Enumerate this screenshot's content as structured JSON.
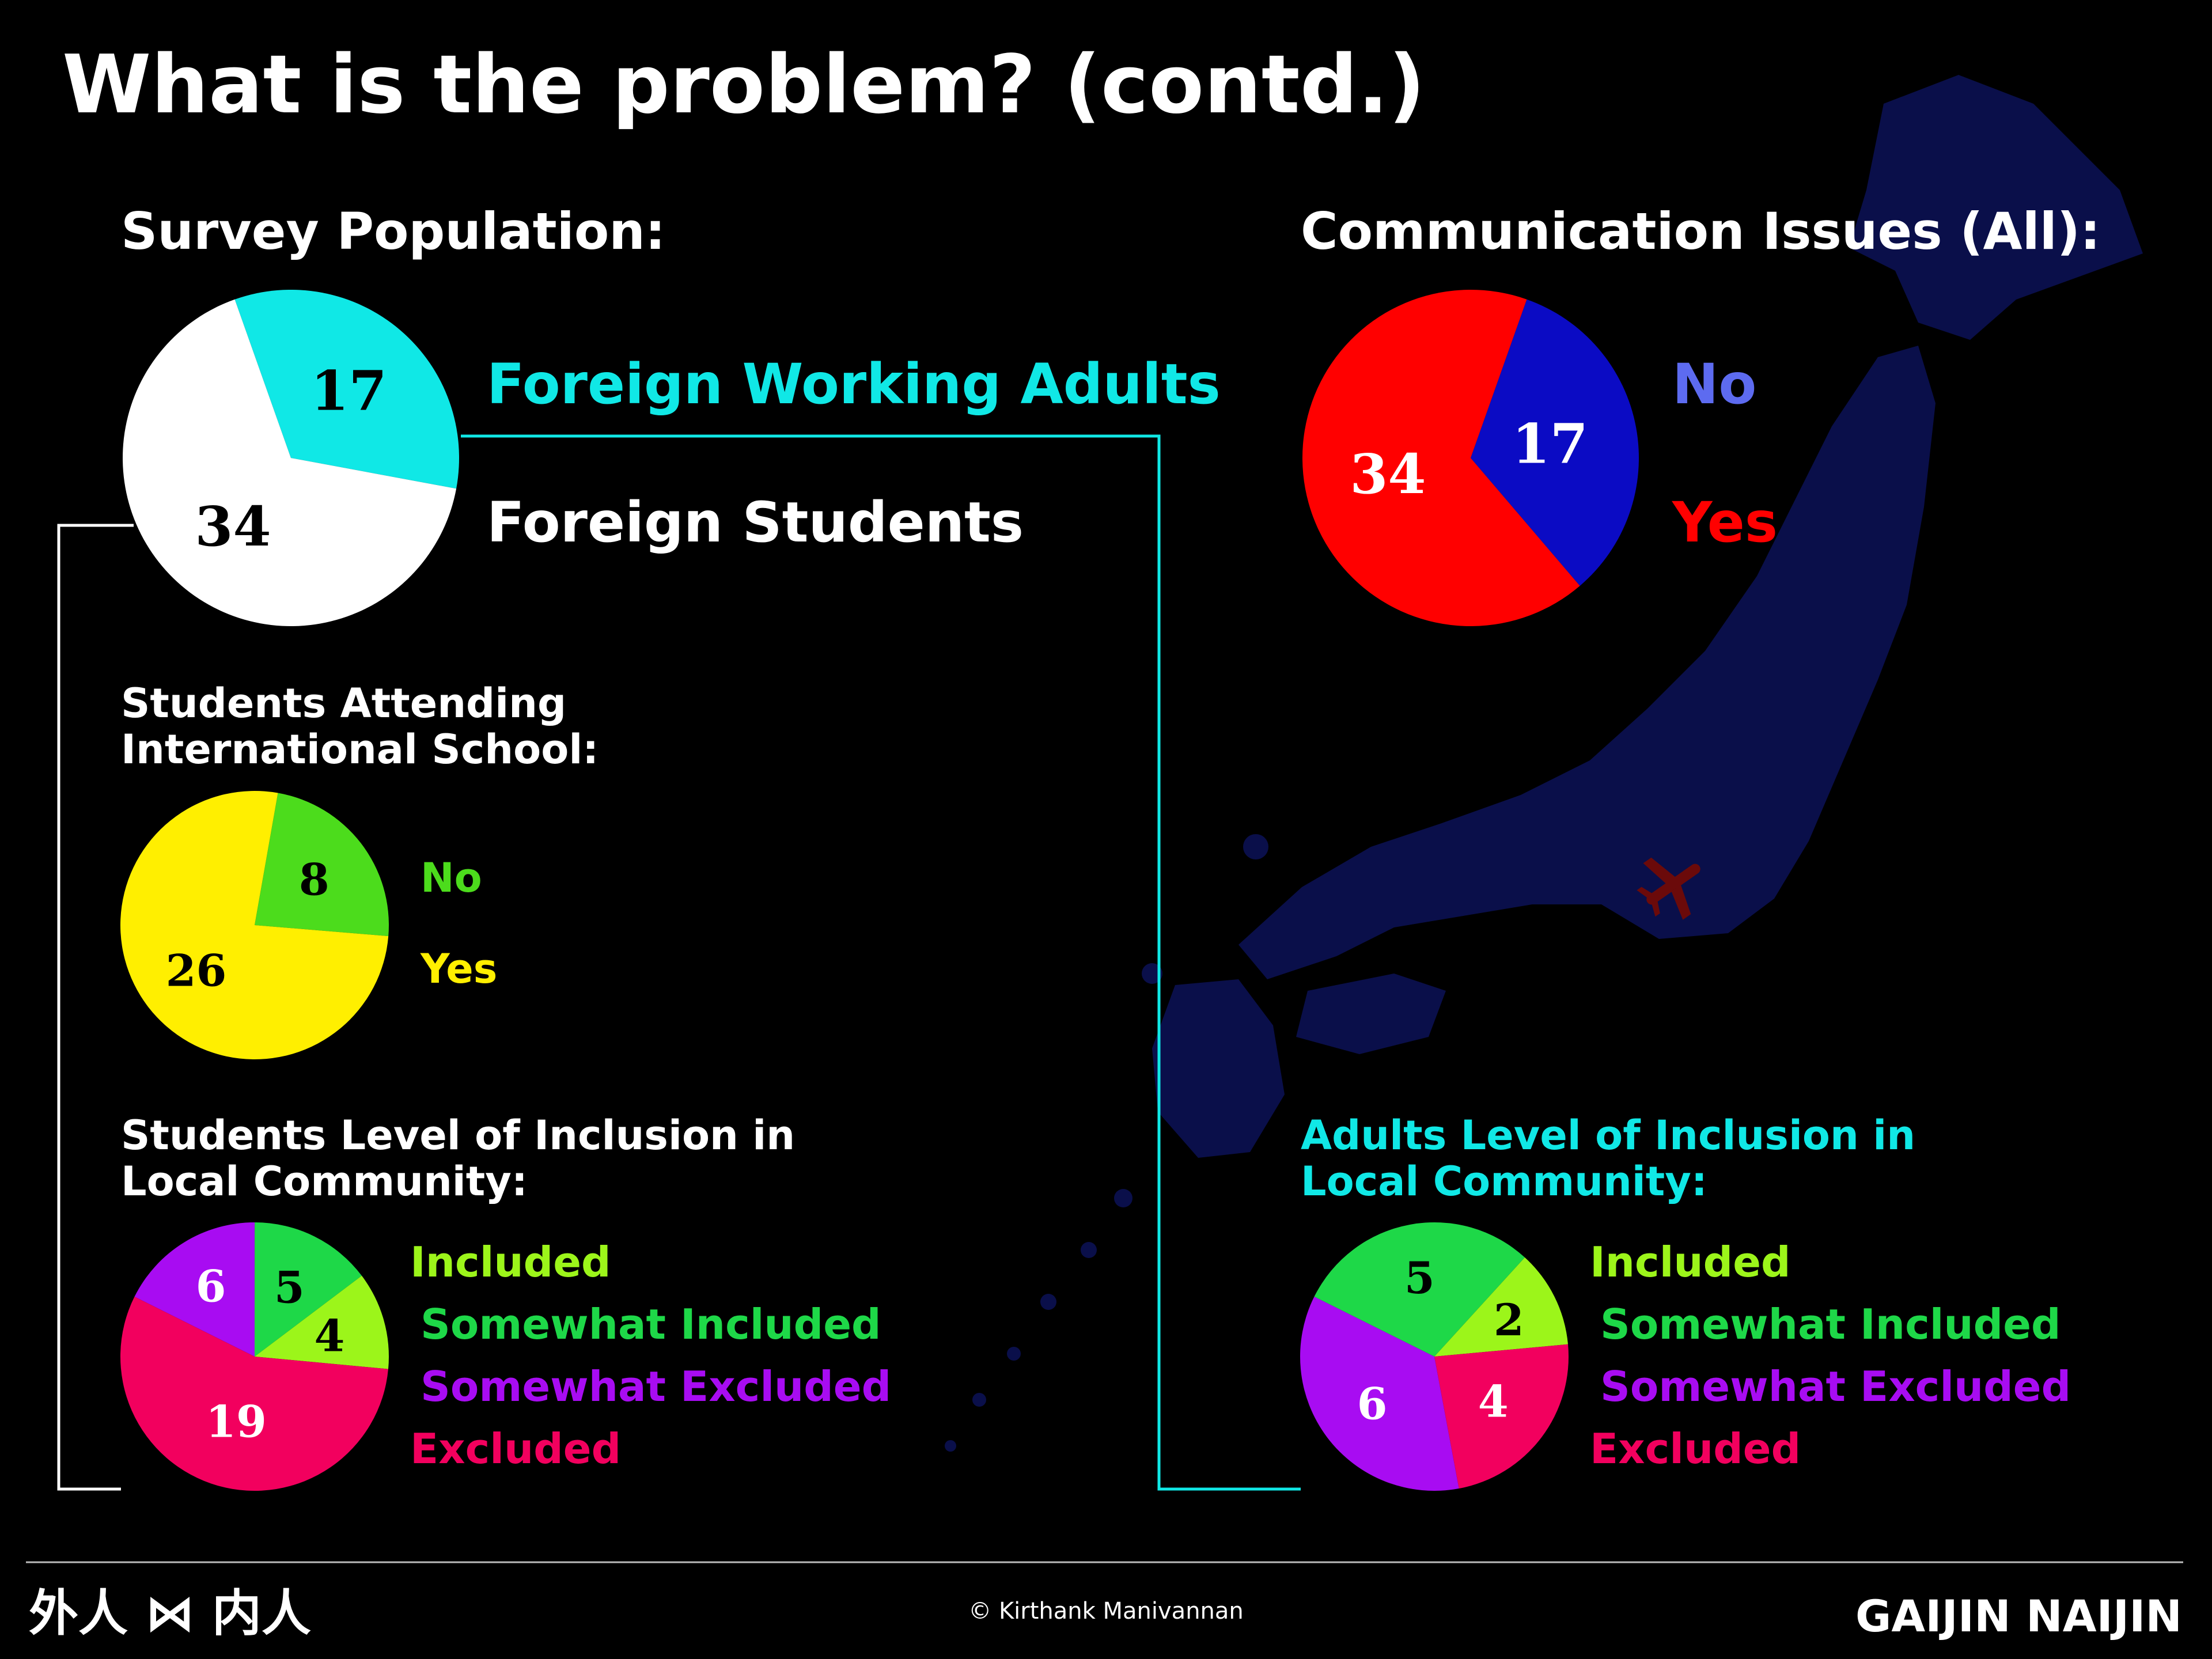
{
  "title": "What is the problem? (contd.)",
  "footer": {
    "logo_left": "外人 ⋈ 内人",
    "credit": "© Kirthank Manivannan",
    "brand": "GAIJIN NAIJIN"
  },
  "map": {
    "icon": "japan-map",
    "overlay_icon": "airplane-icon",
    "color": "#0a0f4a",
    "airplane_color": "#6b0a0a"
  },
  "chart_data": [
    {
      "id": "survey",
      "type": "pie",
      "title": "Survey Population:",
      "slices": [
        {
          "label": "Foreign Working Adults",
          "value": 17,
          "color": "#10e8e6",
          "label_color": "#10e8e6",
          "value_color": "#000000"
        },
        {
          "label": "Foreign Students",
          "value": 34,
          "color": "#ffffff",
          "label_color": "#ffffff",
          "value_color": "#000000"
        }
      ]
    },
    {
      "id": "communication",
      "type": "pie",
      "title": "Communication Issues (All):",
      "slices": [
        {
          "label": "No",
          "value": 17,
          "color": "#0b0bc4",
          "label_color": "#5d6bf0",
          "value_color": "#ffffff"
        },
        {
          "label": "Yes",
          "value": 34,
          "color": "#ff0000",
          "label_color": "#ff0000",
          "value_color": "#ffffff"
        }
      ]
    },
    {
      "id": "intl_school",
      "type": "pie",
      "title": "Students Attending International School:",
      "title_lines": [
        "Students Attending",
        "International School:"
      ],
      "slices": [
        {
          "label": "No",
          "value": 8,
          "color": "#4cdc1c",
          "label_color": "#4cdc1c",
          "value_color": "#000000"
        },
        {
          "label": "Yes",
          "value": 26,
          "color": "#ffef00",
          "label_color": "#ffef00",
          "value_color": "#000000"
        }
      ]
    },
    {
      "id": "students_inclusion",
      "type": "pie",
      "title": "Students Level of Inclusion in Local Community:",
      "title_lines": [
        "Students Level of Inclusion in",
        "Local Community:"
      ],
      "slices": [
        {
          "label": "Included",
          "value": 4,
          "color": "#9cf51a",
          "label_color": "#9cf51a",
          "value_color": "#000000"
        },
        {
          "label": "Somewhat Included",
          "value": 5,
          "color": "#1ed848",
          "label_color": "#1ed848",
          "value_color": "#000000"
        },
        {
          "label": "Somewhat Excluded",
          "value": 6,
          "color": "#a80cf2",
          "label_color": "#a80cf2",
          "value_color": "#ffffff"
        },
        {
          "label": "Excluded",
          "value": 19,
          "color": "#f2005e",
          "label_color": "#f2005e",
          "value_color": "#ffffff"
        }
      ]
    },
    {
      "id": "adults_inclusion",
      "type": "pie",
      "title": "Adults Level of Inclusion in Local Community:",
      "title_lines": [
        "Adults Level of Inclusion in",
        "Local Community:"
      ],
      "title_color": "#10e8e6",
      "slices": [
        {
          "label": "Included",
          "value": 2,
          "color": "#9cf51a",
          "label_color": "#9cf51a",
          "value_color": "#000000"
        },
        {
          "label": "Somewhat Included",
          "value": 5,
          "color": "#1ed848",
          "label_color": "#1ed848",
          "value_color": "#000000"
        },
        {
          "label": "Somewhat Excluded",
          "value": 6,
          "color": "#a80cf2",
          "label_color": "#a80cf2",
          "value_color": "#ffffff"
        },
        {
          "label": "Excluded",
          "value": 4,
          "color": "#f2005e",
          "label_color": "#f2005e",
          "value_color": "#ffffff"
        }
      ]
    }
  ],
  "connectors": {
    "students_color": "#ffffff",
    "adults_color": "#10e8e6"
  }
}
